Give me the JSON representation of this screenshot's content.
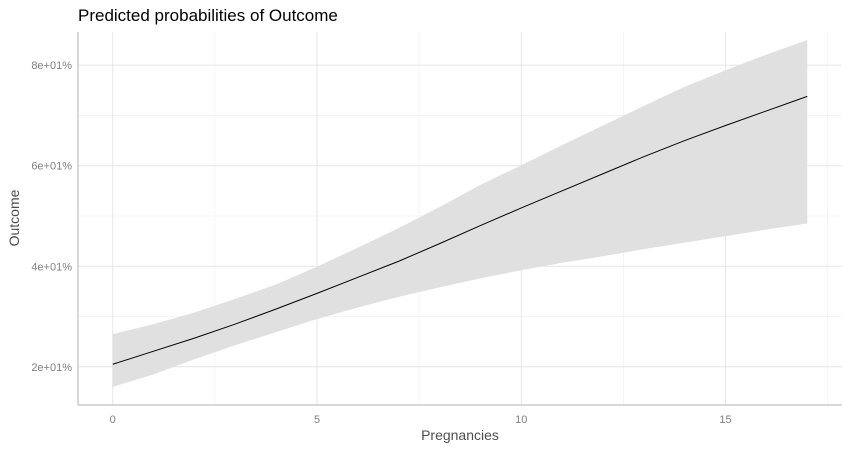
{
  "chart_data": {
    "type": "line",
    "title": "Predicted probabilities of Outcome",
    "xlabel": "Pregnancies",
    "ylabel": "Outcome",
    "xlim": [
      -0.85,
      17.85
    ],
    "ylim": [
      0.124,
      0.866
    ],
    "x_ticks": [
      0,
      5,
      10,
      15
    ],
    "x_tick_labels": [
      "0",
      "5",
      "10",
      "15"
    ],
    "y_ticks": [
      0.2,
      0.4,
      0.6,
      0.8
    ],
    "y_tick_labels": [
      "2e+01%",
      "4e+01%",
      "6e+01%",
      "8e+01%"
    ],
    "grid": true,
    "legend": "none",
    "colors": {
      "line": "#000000",
      "ribbon": "#e0e0e0",
      "grid_major": "#e6e6e6",
      "grid_minor": "#f2f2f2",
      "axis": "#b3b3b3"
    },
    "series": [
      {
        "x": [
          0,
          1,
          2,
          3,
          4,
          5,
          6,
          7,
          8,
          9,
          10,
          11,
          12,
          13,
          14,
          15,
          16,
          17
        ],
        "values": [
          0.205,
          0.231,
          0.257,
          0.285,
          0.315,
          0.346,
          0.378,
          0.41,
          0.445,
          0.481,
          0.516,
          0.55,
          0.584,
          0.618,
          0.65,
          0.68,
          0.709,
          0.738
        ],
        "lower": [
          0.16,
          0.185,
          0.215,
          0.243,
          0.269,
          0.295,
          0.318,
          0.339,
          0.358,
          0.376,
          0.392,
          0.407,
          0.42,
          0.434,
          0.447,
          0.46,
          0.473,
          0.485
        ],
        "upper": [
          0.265,
          0.285,
          0.308,
          0.335,
          0.364,
          0.399,
          0.437,
          0.476,
          0.518,
          0.562,
          0.601,
          0.641,
          0.68,
          0.719,
          0.757,
          0.79,
          0.821,
          0.85
        ]
      }
    ]
  }
}
